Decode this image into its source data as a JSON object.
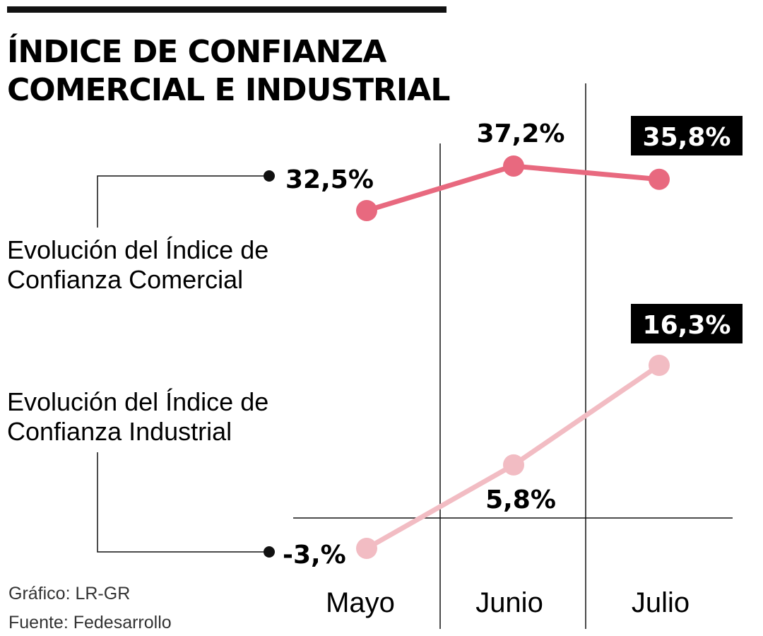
{
  "chart_data": {
    "type": "line",
    "title": [
      "ÍNDICE DE CONFIANZA",
      "COMERCIAL E INDUSTRIAL"
    ],
    "categories": [
      "Mayo",
      "Junio",
      "Julio"
    ],
    "series": [
      {
        "name": "Comercial",
        "legend_lines": [
          "Evolución del Índice de",
          "Confianza Comercial"
        ],
        "values": [
          32.5,
          37.2,
          35.8
        ],
        "labels": [
          "32,5%",
          "37,2%",
          "35,8%"
        ],
        "color": "#e8697f"
      },
      {
        "name": "Industrial",
        "legend_lines": [
          "Evolución del Índice de",
          "Confianza Industrial"
        ],
        "values": [
          -3.0,
          5.8,
          16.3
        ],
        "labels": [
          "-3,%",
          "5,8%",
          "16,3%"
        ],
        "color": "#f2bcc3"
      }
    ],
    "highlighted_labels": [
      "35,8%",
      "16,3%"
    ]
  },
  "credits": {
    "graphic": "Gráfico: LR-GR",
    "source": "Fuente: Fedesarrollo"
  },
  "colors": {
    "text": "#111111",
    "highlight_bg": "#000000",
    "highlight_text": "#ffffff"
  }
}
